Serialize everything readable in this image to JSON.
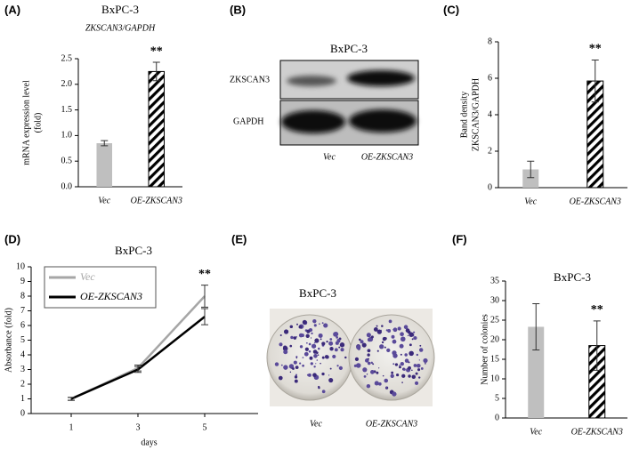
{
  "chart_data": [
    {
      "type": "bar",
      "panel_label": "(A)",
      "title": "BxPC-3",
      "subtitle": "ZKSCAN3/GAPDH",
      "ylabel": [
        "mRNA expression level",
        "(fold)"
      ],
      "categories": [
        "Vec",
        "OE-ZKSCAN3"
      ],
      "values": [
        0.85,
        2.25
      ],
      "errors": [
        0.05,
        0.18
      ],
      "color": "#bfbfbf",
      "bar_styles": [
        "solid",
        "hatched"
      ],
      "ylim": [
        0,
        2.5
      ],
      "yticks": [
        {
          "value": 0,
          "label": "0.0"
        },
        {
          "value": 0.5,
          "label": "0.5"
        },
        {
          "value": 1,
          "label": "1.0"
        },
        {
          "value": 1.5,
          "label": "1.5"
        },
        {
          "value": 2,
          "label": "2.0"
        },
        {
          "value": 2.5,
          "label": "2.5"
        }
      ],
      "annotation": "**"
    },
    {
      "type": "bar",
      "panel_label": "(C)",
      "ylabel": [
        "Band density",
        "ZKSCAN3/GAPDH"
      ],
      "categories": [
        "Vec",
        "OE-ZKSCAN3"
      ],
      "values": [
        1.0,
        5.85
      ],
      "errors": [
        0.45,
        1.15
      ],
      "color": "#bfbfbf",
      "bar_styles": [
        "solid",
        "hatched"
      ],
      "ylim": [
        0,
        8
      ],
      "yticks": [
        0,
        2,
        4,
        6,
        8
      ],
      "annotation": "**"
    },
    {
      "type": "line",
      "panel_label": "(D)",
      "title": "BxPC-3",
      "xlabel": "days",
      "ylabel": "Absorbance (fold)",
      "x": [
        1,
        3,
        5
      ],
      "xlim": [
        -0.2,
        6.6
      ],
      "xticks": [
        1,
        3,
        5
      ],
      "ylim": [
        0,
        10
      ],
      "yticks": [
        0,
        1,
        2,
        3,
        4,
        5,
        6,
        7,
        8,
        9,
        10
      ],
      "series": [
        {
          "name": "Vec",
          "color": "#a6a6a6",
          "values": [
            1.0,
            3.1,
            8.0
          ],
          "errors": [
            0.1,
            0.2,
            0.75
          ]
        },
        {
          "name": "OE-ZKSCAN3",
          "color": "#000000",
          "values": [
            1.0,
            3.0,
            6.6
          ],
          "errors": [
            0.1,
            0.2,
            0.55
          ]
        }
      ],
      "legend": "upper left",
      "annotation": "**"
    },
    {
      "type": "bar",
      "panel_label": "(F)",
      "title": "BxPC-3",
      "ylabel": "Number of colonies",
      "categories": [
        "Vec",
        "OE-ZKSCAN3"
      ],
      "values": [
        23.3,
        18.5
      ],
      "errors": [
        5.9,
        6.3
      ],
      "color": "#bfbfbf",
      "bar_styles": [
        "solid",
        "hatched"
      ],
      "ylim": [
        0,
        35
      ],
      "yticks": [
        0,
        5,
        10,
        15,
        20,
        25,
        30,
        35
      ],
      "annotation": "**"
    }
  ],
  "panel_b": {
    "label": "(B)",
    "title": "BxPC-3",
    "rows": [
      "ZKSCAN3",
      "GAPDH"
    ],
    "lanes": [
      "Vec",
      "OE-ZKSCAN3"
    ]
  },
  "panel_e": {
    "label": "(E)",
    "title": "BxPC-3",
    "lanes": [
      "Vec",
      "OE-ZKSCAN3"
    ]
  }
}
